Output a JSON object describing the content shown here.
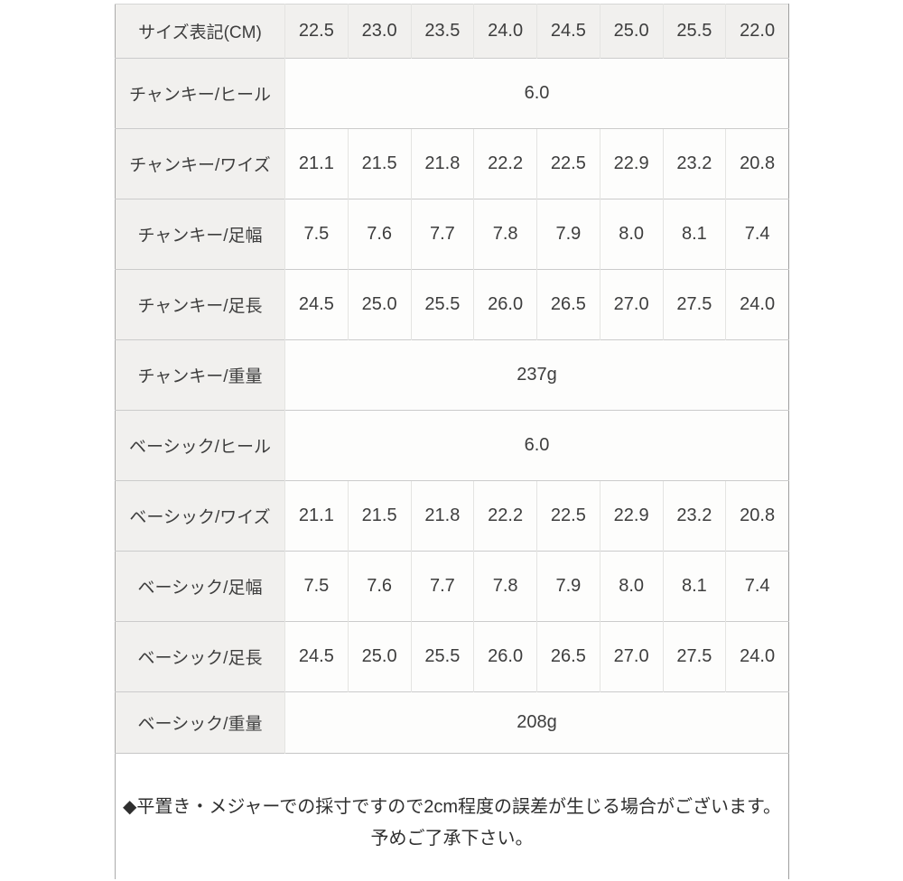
{
  "chart_data": {
    "type": "table",
    "header": {
      "label": "サイズ表記(CM)",
      "sizes": [
        "22.5",
        "23.0",
        "23.5",
        "24.0",
        "24.5",
        "25.0",
        "25.5",
        "22.0"
      ]
    },
    "rows": [
      {
        "label": "チャンキー/ヒール",
        "span_value": "6.0"
      },
      {
        "label": "チャンキー/ワイズ",
        "values": [
          "21.1",
          "21.5",
          "21.8",
          "22.2",
          "22.5",
          "22.9",
          "23.2",
          "20.8"
        ]
      },
      {
        "label": "チャンキー/足幅",
        "values": [
          "7.5",
          "7.6",
          "7.7",
          "7.8",
          "7.9",
          "8.0",
          "8.1",
          "7.4"
        ]
      },
      {
        "label": "チャンキー/足長",
        "values": [
          "24.5",
          "25.0",
          "25.5",
          "26.0",
          "26.5",
          "27.0",
          "27.5",
          "24.0"
        ]
      },
      {
        "label": "チャンキー/重量",
        "span_value": "237g"
      },
      {
        "label": "ベーシック/ヒール",
        "span_value": "6.0"
      },
      {
        "label": "ベーシック/ワイズ",
        "values": [
          "21.1",
          "21.5",
          "21.8",
          "22.2",
          "22.5",
          "22.9",
          "23.2",
          "20.8"
        ]
      },
      {
        "label": "ベーシック/足幅",
        "values": [
          "7.5",
          "7.6",
          "7.7",
          "7.8",
          "7.9",
          "8.0",
          "8.1",
          "7.4"
        ]
      },
      {
        "label": "ベーシック/足長",
        "values": [
          "24.5",
          "25.0",
          "25.5",
          "26.0",
          "26.5",
          "27.0",
          "27.5",
          "24.0"
        ]
      },
      {
        "label": "ベーシック/重量",
        "span_value": "208g"
      }
    ]
  },
  "note": {
    "line1": "◆平置き・メジャーでの採寸ですので2cm程度の誤差が生じる場合がございます。",
    "line2": "予めご了承下さい。"
  },
  "colors": {
    "header_bg": "#f1f0ee",
    "cell_bg": "#fdfdfc",
    "row_border": "#cbcbcb",
    "col_border": "#e4e4e2",
    "outer_border": "#ababab",
    "text": "#3d3d3d"
  }
}
